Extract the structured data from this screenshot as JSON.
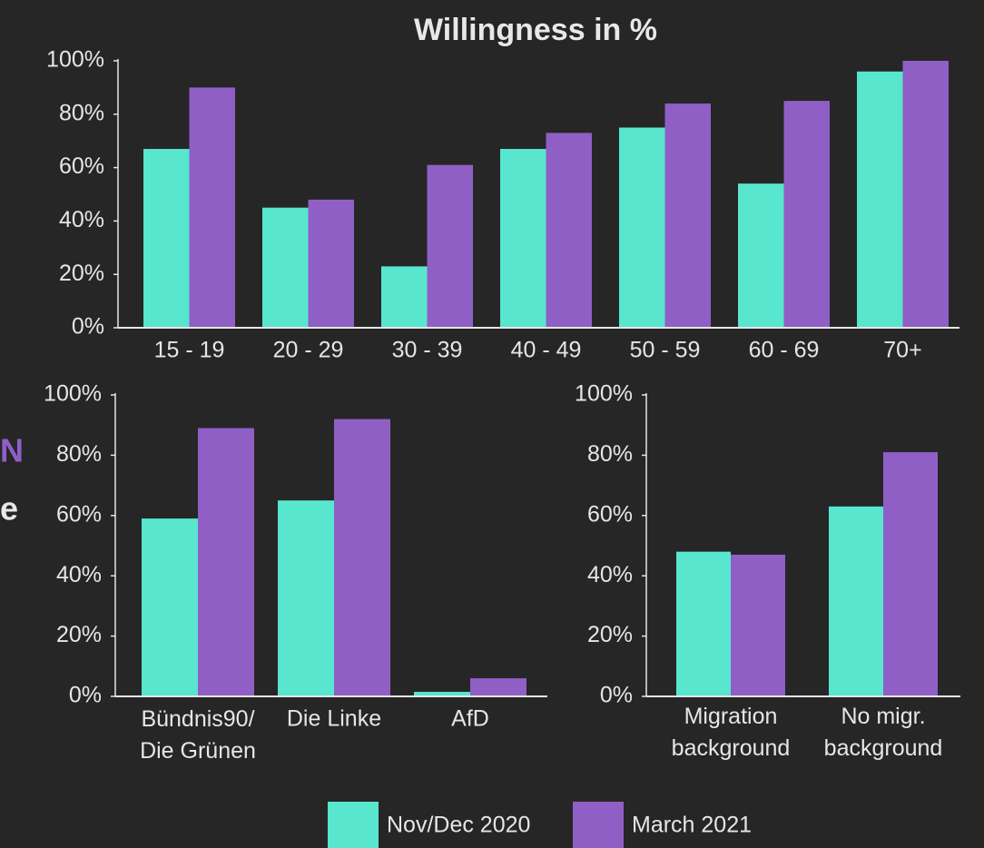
{
  "chart_data": [
    {
      "type": "bar",
      "title": "Willingness in %",
      "categories": [
        "15 - 19",
        "20 - 29",
        "30 - 39",
        "40 - 49",
        "50 - 59",
        "60 - 69",
        "70+"
      ],
      "series": [
        {
          "name": "Nov/Dec 2020",
          "color": "#58e6cf",
          "values": [
            67,
            45,
            23,
            67,
            75,
            54,
            96
          ]
        },
        {
          "name": "March 2021",
          "color": "#8f5fc6",
          "values": [
            90,
            48,
            61,
            73,
            84,
            85,
            100
          ]
        }
      ],
      "ylim": [
        0,
        100
      ],
      "yticks": [
        {
          "value": 0,
          "label": "0%"
        },
        {
          "value": 20,
          "label": "20%"
        },
        {
          "value": 40,
          "label": "40%"
        },
        {
          "value": 60,
          "label": "60%"
        },
        {
          "value": 80,
          "label": "80%"
        },
        {
          "value": 100,
          "label": "100%"
        }
      ]
    },
    {
      "type": "bar",
      "categories": [
        "Bündnis90/\nDie Grünen",
        "Die Linke",
        "AfD"
      ],
      "series": [
        {
          "name": "Nov/Dec 2020",
          "color": "#58e6cf",
          "values": [
            59,
            65,
            1.5
          ]
        },
        {
          "name": "March 2021",
          "color": "#8f5fc6",
          "values": [
            89,
            92,
            6
          ]
        }
      ],
      "ylim": [
        0,
        100
      ],
      "yticks": [
        {
          "value": 0,
          "label": "0%"
        },
        {
          "value": 20,
          "label": "20%"
        },
        {
          "value": 40,
          "label": "40%"
        },
        {
          "value": 60,
          "label": "60%"
        },
        {
          "value": 80,
          "label": "80%"
        },
        {
          "value": 100,
          "label": "100%"
        }
      ]
    },
    {
      "type": "bar",
      "categories": [
        "Migration\nbackground",
        "No migr.\nbackground"
      ],
      "series": [
        {
          "name": "Nov/Dec 2020",
          "color": "#58e6cf",
          "values": [
            48,
            63
          ]
        },
        {
          "name": "March 2021",
          "color": "#8f5fc6",
          "values": [
            47,
            81
          ]
        }
      ],
      "ylim": [
        0,
        100
      ],
      "yticks": [
        {
          "value": 0,
          "label": "0%"
        },
        {
          "value": 20,
          "label": "20%"
        },
        {
          "value": 40,
          "label": "40%"
        },
        {
          "value": 60,
          "label": "60%"
        },
        {
          "value": 80,
          "label": "80%"
        },
        {
          "value": 100,
          "label": "100%"
        }
      ]
    }
  ],
  "side_text": [
    "N",
    "e"
  ]
}
